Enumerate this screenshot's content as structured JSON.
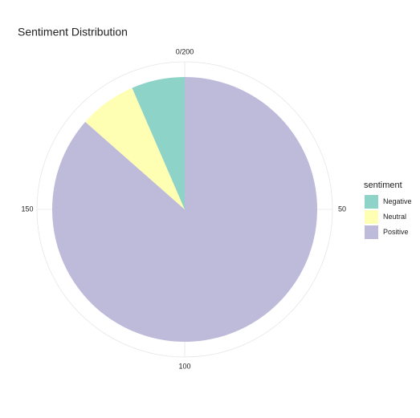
{
  "chart_data": {
    "type": "pie",
    "title": "Sentiment Distribution",
    "legend_title": "sentiment",
    "categories": [
      "Negative",
      "Neutral",
      "Positive"
    ],
    "values": [
      13,
      14,
      173
    ],
    "colors": [
      "#8dd3c7",
      "#ffffb3",
      "#bebada"
    ],
    "thetalim": [
      0,
      200
    ],
    "thetaticks": [
      {
        "value": 0,
        "label": "0/200"
      },
      50,
      100,
      150
    ],
    "grid": true
  }
}
